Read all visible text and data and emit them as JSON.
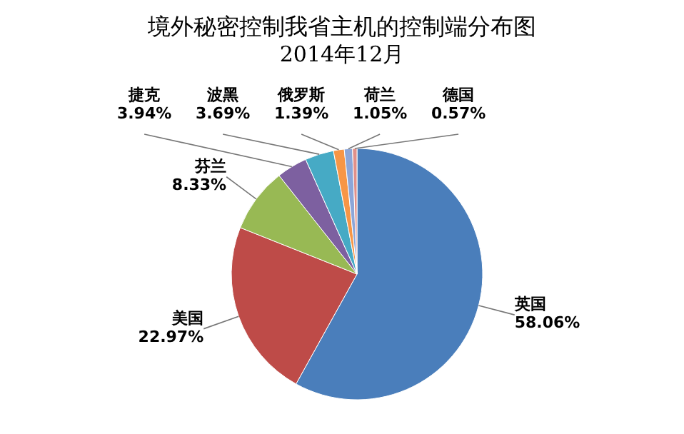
{
  "chart_data": {
    "type": "pie",
    "title": "境外秘密控制我省主机的控制端分布图",
    "subtitle": "2014年12月",
    "categories": [
      "英国",
      "美国",
      "芬兰",
      "捷克",
      "波黑",
      "俄罗斯",
      "荷兰",
      "德国"
    ],
    "values": [
      58.06,
      22.97,
      8.33,
      3.94,
      3.69,
      1.39,
      1.05,
      0.57
    ],
    "value_labels": [
      "58.06%",
      "22.97%",
      "8.33%",
      "3.94%",
      "3.69%",
      "1.39%",
      "1.05%",
      "0.57%"
    ],
    "colors": [
      "#4a7ebb",
      "#be4b48",
      "#98b954",
      "#7d60a0",
      "#46aac5",
      "#f79646",
      "#8ca6d8",
      "#e0908a"
    ]
  }
}
